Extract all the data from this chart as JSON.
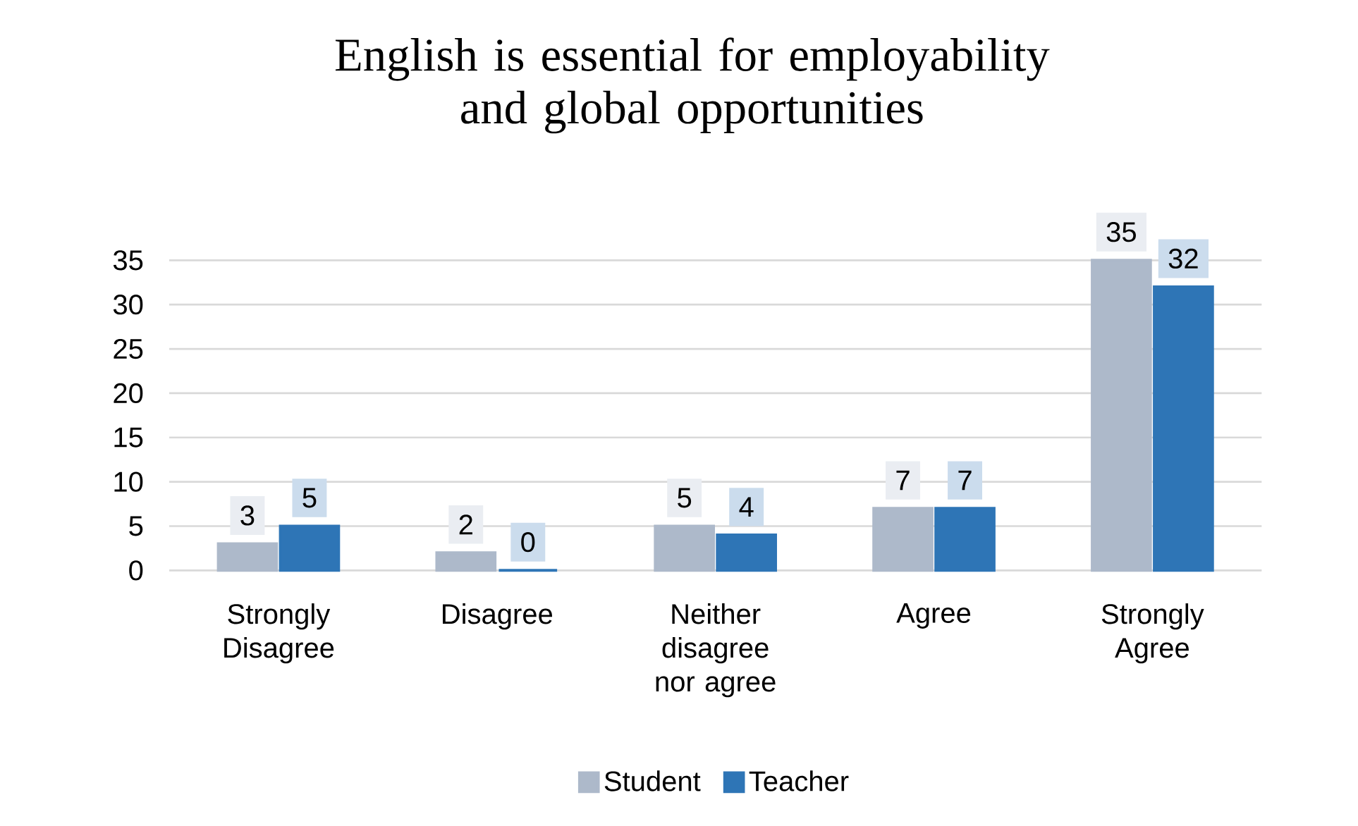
{
  "chart_data": {
    "type": "bar",
    "title": "English is essential for employability and global opportunities",
    "categories": [
      "Strongly Disagree",
      "Disagree",
      "Neither disagree nor agree",
      "Agree",
      "Strongly Agree"
    ],
    "series": [
      {
        "name": "Student",
        "color": "#adb9ca",
        "values": [
          3,
          2,
          5,
          7,
          35
        ]
      },
      {
        "name": "Teacher",
        "color": "#2e75b6",
        "values": [
          5,
          0,
          4,
          7,
          32
        ]
      }
    ],
    "ylim": [
      0,
      35
    ],
    "yticks": [
      0,
      5,
      10,
      15,
      20,
      25,
      30,
      35
    ],
    "grid": "y",
    "legend": "bottom",
    "data_labels": true
  }
}
